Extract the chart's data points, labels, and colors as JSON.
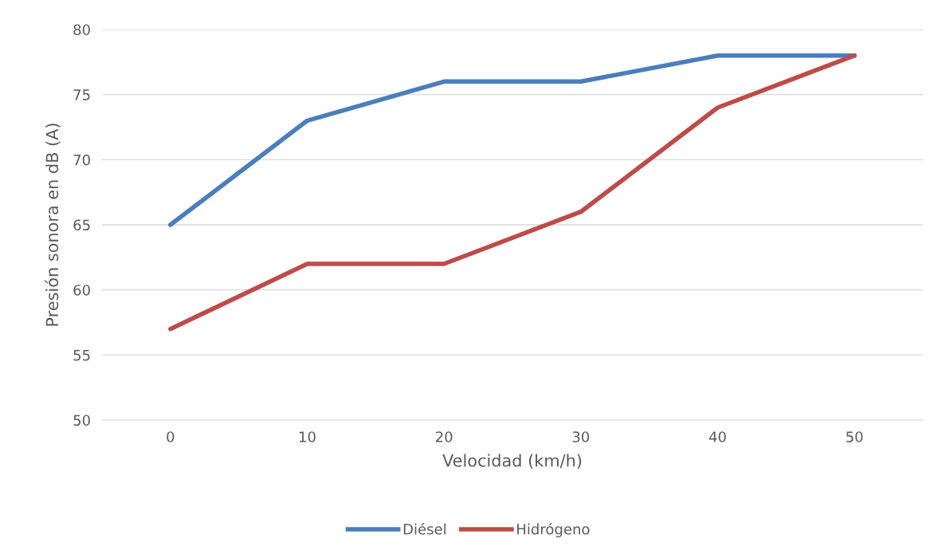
{
  "chart_data": {
    "type": "line",
    "xlabel": "Velocidad (km/h)",
    "ylabel": "Presión sonora en dB (A)",
    "categories": [
      "0",
      "10",
      "20",
      "30",
      "40",
      "50"
    ],
    "series": [
      {
        "name": "Diésel",
        "color": "#4a7ebb",
        "values": [
          65,
          73,
          76,
          76,
          78,
          78
        ]
      },
      {
        "name": "Hidrógeno",
        "color": "#be4b48",
        "values": [
          57,
          62,
          62,
          66,
          74,
          78
        ]
      }
    ],
    "ylim": [
      50,
      80
    ],
    "yticks": [
      50,
      55,
      60,
      65,
      70,
      75,
      80
    ],
    "grid": "y",
    "legend": "bottom",
    "marker": "none",
    "line_style": "solid"
  }
}
